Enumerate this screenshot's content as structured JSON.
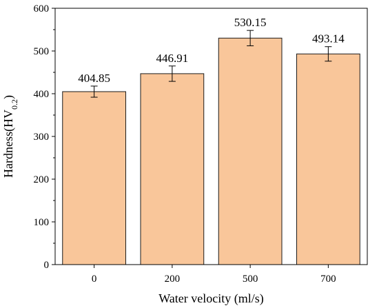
{
  "chart_data": {
    "type": "bar",
    "categories": [
      "0",
      "200",
      "500",
      "700"
    ],
    "values": [
      404.85,
      446.91,
      530.15,
      493.14
    ],
    "value_labels": [
      "404.85",
      "446.91",
      "530.15",
      "493.14"
    ],
    "error": [
      13,
      18,
      18,
      17
    ],
    "xlabel": "Water velocity (ml/s)",
    "ylabel": {
      "main": "Hardness(HV",
      "sub": "0.2",
      "close": ")"
    },
    "ylim": [
      0,
      600
    ],
    "yticks": [
      "0",
      "100",
      "200",
      "300",
      "400",
      "500",
      "600"
    ],
    "grid": false,
    "legend": "none",
    "colors": {
      "bar_fill": "#f9c69a",
      "bar_stroke": "#1a1a1a",
      "axis": "#000000"
    }
  }
}
